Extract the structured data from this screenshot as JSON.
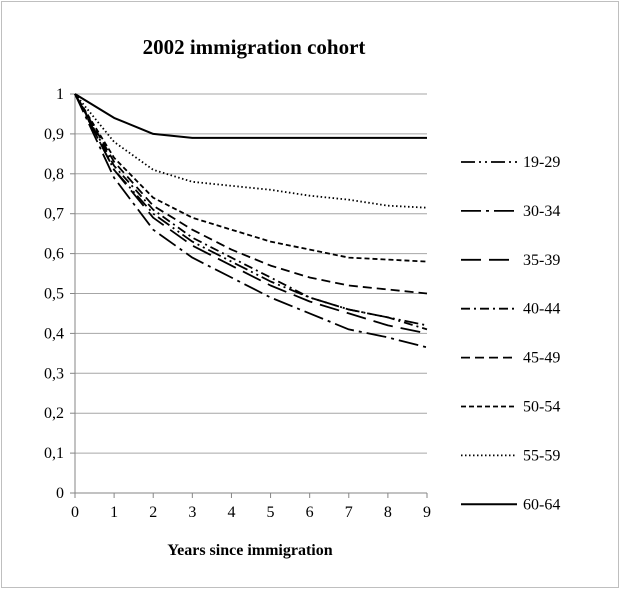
{
  "chart_data": {
    "type": "line",
    "title": "2002 immigration cohort",
    "xlabel": "Years since immigration",
    "ylabel": "",
    "x": [
      0,
      1,
      2,
      3,
      4,
      5,
      6,
      7,
      8,
      9
    ],
    "xlim": [
      0,
      9
    ],
    "ylim": [
      0,
      1
    ],
    "x_ticks": [
      "0",
      "1",
      "2",
      "3",
      "4",
      "5",
      "6",
      "7",
      "8",
      "9"
    ],
    "y_ticks": [
      "0",
      "0,1",
      "0,2",
      "0,3",
      "0,4",
      "0,5",
      "0,6",
      "0,7",
      "0,8",
      "0,9",
      "1"
    ],
    "grid": "horizontal",
    "legend_position": "right",
    "series": [
      {
        "name": "19-29",
        "dash": "dashdotdot",
        "values": [
          1,
          0.81,
          0.7,
          0.63,
          0.58,
          0.53,
          0.49,
          0.46,
          0.44,
          0.42
        ]
      },
      {
        "name": "30-34",
        "dash": "longdashdot",
        "values": [
          1,
          0.79,
          0.66,
          0.59,
          0.54,
          0.49,
          0.45,
          0.41,
          0.39,
          0.365
        ]
      },
      {
        "name": "35-39",
        "dash": "longdash",
        "values": [
          1,
          0.81,
          0.69,
          0.62,
          0.57,
          0.52,
          0.48,
          0.45,
          0.42,
          0.4
        ]
      },
      {
        "name": "40-44",
        "dash": "dashdot",
        "values": [
          1,
          0.82,
          0.71,
          0.64,
          0.59,
          0.54,
          0.49,
          0.46,
          0.44,
          0.41
        ]
      },
      {
        "name": "45-49",
        "dash": "dash",
        "values": [
          1,
          0.83,
          0.72,
          0.66,
          0.61,
          0.57,
          0.54,
          0.52,
          0.51,
          0.5
        ]
      },
      {
        "name": "50-54",
        "dash": "shortdash",
        "values": [
          1,
          0.84,
          0.74,
          0.69,
          0.66,
          0.63,
          0.61,
          0.59,
          0.585,
          0.58
        ]
      },
      {
        "name": "55-59",
        "dash": "dot",
        "values": [
          1,
          0.88,
          0.81,
          0.78,
          0.77,
          0.76,
          0.745,
          0.735,
          0.72,
          0.715
        ]
      },
      {
        "name": "60-64",
        "dash": "solid",
        "values": [
          1,
          0.94,
          0.9,
          0.89,
          0.89,
          0.89,
          0.89,
          0.89,
          0.89,
          0.89
        ]
      }
    ],
    "colors": {
      "lines": "#000000",
      "grid": "#a6a6a6",
      "axis": "#868686",
      "frame": "#bfbfbf"
    }
  }
}
